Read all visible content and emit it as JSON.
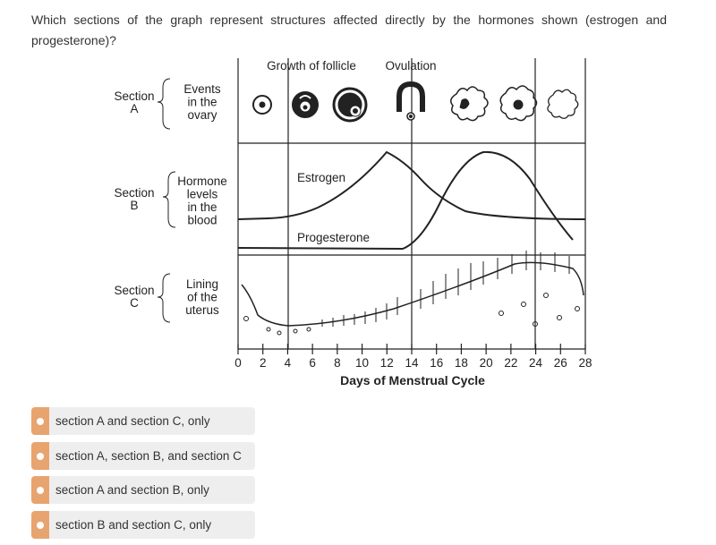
{
  "question": "Which sections of the graph represent structures affected directly by the hormones shown (estrogen and progesterone)?",
  "figure": {
    "top_labels": [
      "Growth of follicle",
      "Ovulation"
    ],
    "sections": [
      {
        "name": "Section",
        "letter": "A",
        "desc": [
          "Events",
          "in the",
          "ovary"
        ]
      },
      {
        "name": "Section",
        "letter": "B",
        "desc": [
          "Hormone",
          "levels",
          "in the",
          "blood"
        ]
      },
      {
        "name": "Section",
        "letter": "C",
        "desc": [
          "Lining",
          "of the",
          "uterus"
        ]
      }
    ],
    "curve_labels": [
      "Estrogen",
      "Progesterone"
    ],
    "days": [
      0,
      2,
      4,
      6,
      8,
      10,
      12,
      14,
      16,
      18,
      20,
      22,
      24,
      26,
      28
    ],
    "x_label": "Days of Menstrual Cycle"
  },
  "options": [
    "section A and section C, only",
    "section A, section B, and section C",
    "section A and section B, only",
    "section B and section C, only"
  ]
}
